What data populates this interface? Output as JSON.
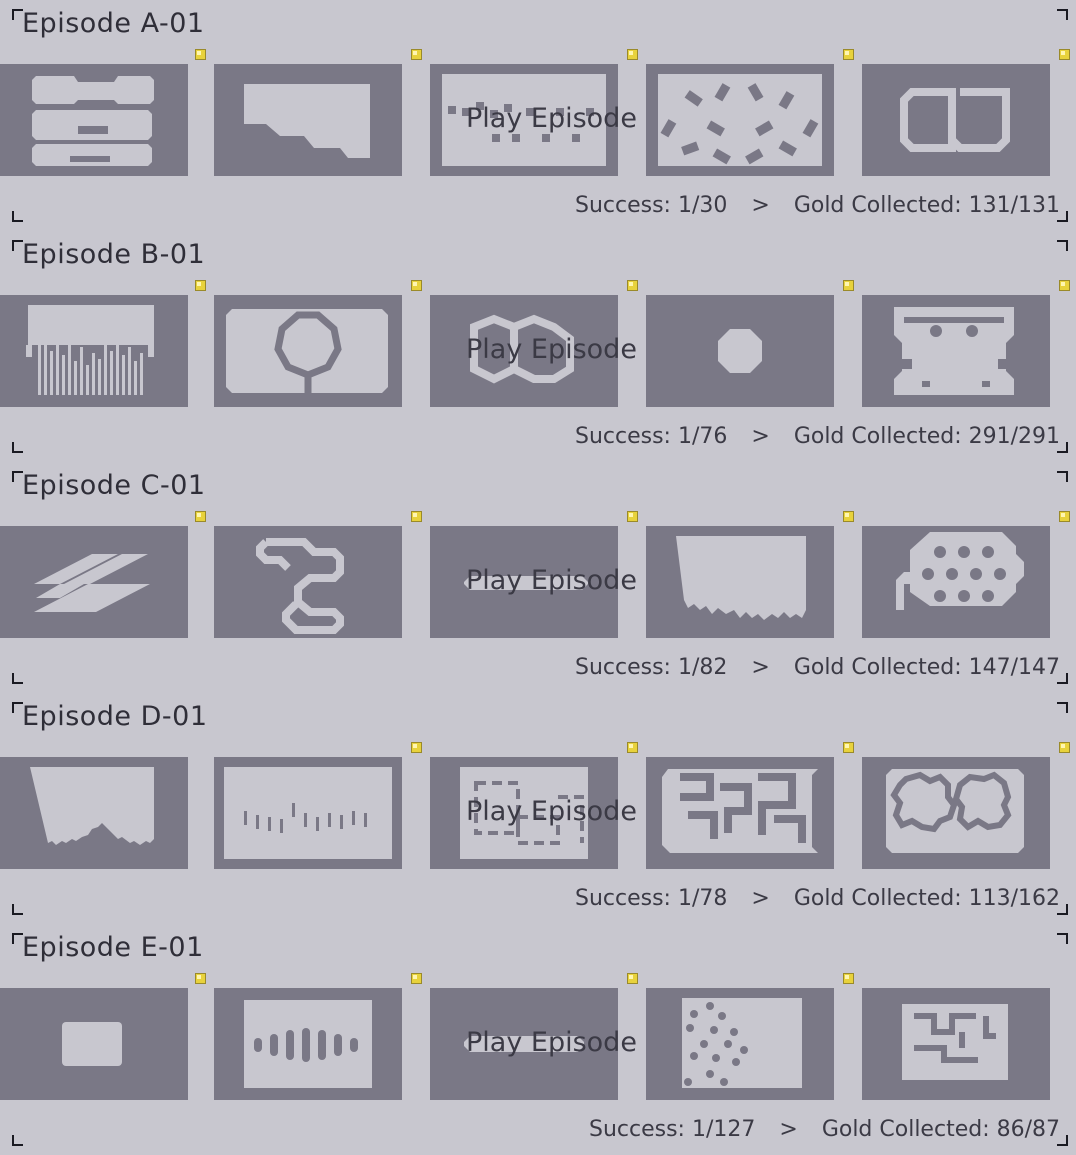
{
  "play_label": "Play Episode",
  "separator": ">",
  "colors": {
    "background": "#c8c7cf",
    "thumb": "#7a7886",
    "shape": "#c8c7cf",
    "gold": "#e8d23c"
  },
  "episodes": [
    {
      "title": "Episode A-01",
      "success": "Success: 1/30",
      "gold": "Gold Collected: 131/131",
      "gold_markers": [
        1,
        1,
        1,
        1,
        1
      ]
    },
    {
      "title": "Episode B-01",
      "success": "Success: 1/76",
      "gold": "Gold Collected: 291/291",
      "gold_markers": [
        1,
        1,
        1,
        1,
        1
      ]
    },
    {
      "title": "Episode C-01",
      "success": "Success: 1/82",
      "gold": "Gold Collected: 147/147",
      "gold_markers": [
        1,
        1,
        1,
        1,
        1
      ]
    },
    {
      "title": "Episode D-01",
      "success": "Success: 1/78",
      "gold": "Gold Collected: 113/162",
      "gold_markers": [
        0,
        1,
        1,
        1,
        1
      ]
    },
    {
      "title": "Episode E-01",
      "success": "Success: 1/127",
      "gold": "Gold Collected: 86/87",
      "gold_markers": [
        1,
        1,
        1,
        1,
        0
      ]
    }
  ]
}
